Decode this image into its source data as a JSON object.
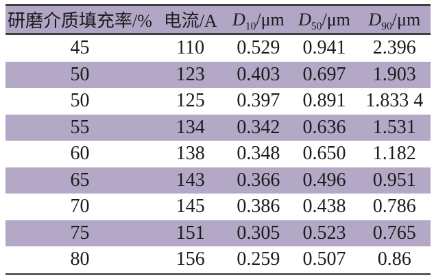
{
  "colors": {
    "stripe": "#b3a9c7",
    "header_bg": "#b1a6c5",
    "rule": "#3f3f3f",
    "rule_bottom": "#5d5d5d",
    "text": "#1b1b1b"
  },
  "table": {
    "header": {
      "fill_rate_label": "研磨介质填充率/%",
      "current_label": "电流/A",
      "d_columns": [
        {
          "symbol": "D",
          "subscript": "10",
          "unit": "/μm"
        },
        {
          "symbol": "D",
          "subscript": "50",
          "unit": "/μm"
        },
        {
          "symbol": "D",
          "subscript": "90",
          "unit": "/μm"
        }
      ]
    },
    "rows": [
      {
        "fill_rate": "45",
        "current": "110",
        "d10": "0.529",
        "d50": "0.941",
        "d90": "2.396",
        "striped": false
      },
      {
        "fill_rate": "50",
        "current": "123",
        "d10": "0.403",
        "d50": "0.697",
        "d90": "1.903",
        "striped": true
      },
      {
        "fill_rate": "50",
        "current": "125",
        "d10": "0.397",
        "d50": "0.891",
        "d90": "1.833 4",
        "striped": false
      },
      {
        "fill_rate": "55",
        "current": "134",
        "d10": "0.342",
        "d50": "0.636",
        "d90": "1.531",
        "striped": true
      },
      {
        "fill_rate": "60",
        "current": "138",
        "d10": "0.348",
        "d50": "0.650",
        "d90": "1.182",
        "striped": false
      },
      {
        "fill_rate": "65",
        "current": "143",
        "d10": "0.366",
        "d50": "0.496",
        "d90": "0.951",
        "striped": true
      },
      {
        "fill_rate": "70",
        "current": "145",
        "d10": "0.386",
        "d50": "0.438",
        "d90": "0.786",
        "striped": false
      },
      {
        "fill_rate": "75",
        "current": "151",
        "d10": "0.305",
        "d50": "0.523",
        "d90": "0.765",
        "striped": true
      },
      {
        "fill_rate": "80",
        "current": "156",
        "d10": "0.259",
        "d50": "0.507",
        "d90": "0.86",
        "striped": false
      }
    ]
  },
  "chart_data": {
    "type": "table",
    "columns": [
      "研磨介质填充率/%",
      "电流/A",
      "D10/μm",
      "D50/μm",
      "D90/μm"
    ],
    "rows": [
      [
        "45",
        "110",
        "0.529",
        "0.941",
        "2.396"
      ],
      [
        "50",
        "123",
        "0.403",
        "0.697",
        "1.903"
      ],
      [
        "50",
        "125",
        "0.397",
        "0.891",
        "1.833 4"
      ],
      [
        "55",
        "134",
        "0.342",
        "0.636",
        "1.531"
      ],
      [
        "60",
        "138",
        "0.348",
        "0.650",
        "1.182"
      ],
      [
        "65",
        "143",
        "0.366",
        "0.496",
        "0.951"
      ],
      [
        "70",
        "145",
        "0.386",
        "0.438",
        "0.786"
      ],
      [
        "75",
        "151",
        "0.305",
        "0.523",
        "0.765"
      ],
      [
        "80",
        "156",
        "0.259",
        "0.507",
        "0.86"
      ]
    ],
    "layout_hints": {
      "header_background": "#b1a6c5",
      "striped_rows": [
        2,
        4,
        6,
        8
      ],
      "stripe_color": "#b3a9c7",
      "rules": "horizontal only (top, below header, bottom)"
    }
  }
}
